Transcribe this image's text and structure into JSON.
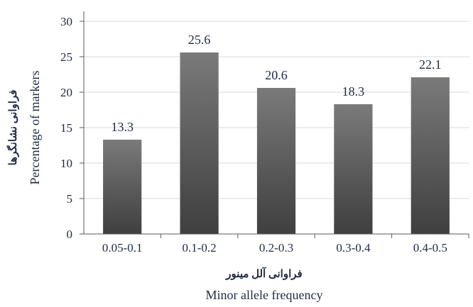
{
  "chart_data": {
    "type": "bar",
    "categories": [
      "0.05-0.1",
      "0.1-0.2",
      "0.2-0.3",
      "0.3-0.4",
      "0.4-0.5"
    ],
    "values": [
      13.3,
      25.6,
      20.6,
      18.3,
      22.1
    ],
    "data_labels": [
      "13.3",
      "25.6",
      "20.6",
      "18.3",
      "22.1"
    ],
    "title": "",
    "xlabel": "Minor allele frequency",
    "xlabel_fa": "فراوانی آلل مینور",
    "ylabel": "Percentage of markers",
    "ylabel_fa": "فراوانی نشانگرها",
    "ylim": [
      0,
      30
    ],
    "yticks": [
      0,
      5,
      10,
      15,
      20,
      25,
      30
    ],
    "grid": true,
    "legend": "none",
    "colors": {
      "bar_top": "#7a7a7a",
      "bar_bottom": "#3f3f3f",
      "grid": "#d9d9d9",
      "axis": "#595959",
      "text": "#1f2a44"
    }
  }
}
